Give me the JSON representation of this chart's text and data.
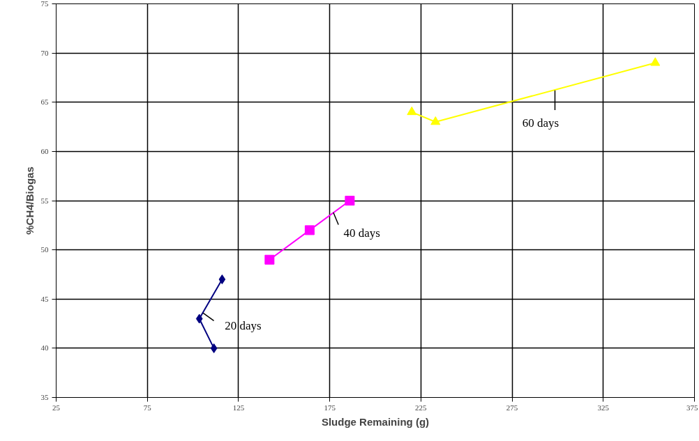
{
  "chart_data": {
    "type": "line",
    "xlabel": "Sludge Remaining (g)",
    "ylabel": "%CH4/Biogas",
    "xlim": [
      25,
      375
    ],
    "xticks": [
      25,
      75,
      125,
      175,
      225,
      275,
      325,
      375
    ],
    "ylim": [
      35,
      75
    ],
    "yticks": [
      35,
      40,
      45,
      50,
      55,
      60,
      65,
      70,
      75
    ],
    "grid": true,
    "line_style": "solid",
    "series": [
      {
        "color": "#000080",
        "marker": "diamond",
        "x": [
          116,
          103.5,
          111.5
        ],
        "values": [
          47,
          43,
          40
        ]
      },
      {
        "color": "#ff00ff",
        "marker": "square",
        "x": [
          142,
          164,
          186
        ],
        "values": [
          49,
          52,
          55
        ]
      },
      {
        "color": "#ffff00",
        "marker": "triangle",
        "x": [
          220,
          233,
          353.5
        ],
        "values": [
          64,
          63,
          69
        ]
      }
    ],
    "annotations": [
      {
        "text": "20 days",
        "x": 105.5,
        "y": 43.6
      },
      {
        "text": "40 days",
        "x": 177,
        "y": 53.8
      },
      {
        "text": "60 days",
        "x": 298.5,
        "y": 66.2
      }
    ]
  }
}
